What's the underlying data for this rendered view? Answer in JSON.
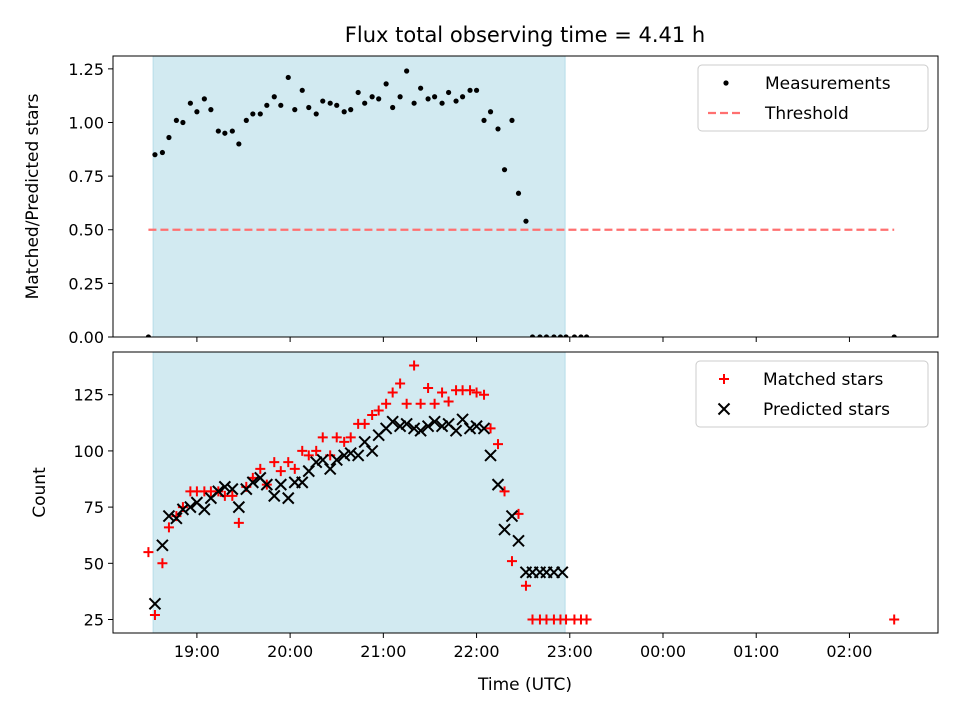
{
  "title": "Flux total observing time = 4.41 h",
  "xlabel": "Time (UTC)",
  "xticks": [
    "19:00",
    "20:00",
    "21:00",
    "22:00",
    "23:00",
    "00:00",
    "01:00",
    "02:00"
  ],
  "shade": {
    "start": 18.53,
    "end": 22.95,
    "color": "#add8e6"
  },
  "chart_data": [
    {
      "type": "scatter",
      "ylabel": "Matched/Predicted stars",
      "xlim": [
        18.1,
        26.95
      ],
      "ylim": [
        0,
        1.31
      ],
      "yticks": [
        "0.00",
        "0.25",
        "0.50",
        "0.75",
        "1.00",
        "1.25"
      ],
      "legend_position": "top-right",
      "series": [
        {
          "name": "Measurements",
          "color": "#000000",
          "marker": "dot",
          "x": [
            18.48,
            18.55,
            18.63,
            18.7,
            18.78,
            18.85,
            18.93,
            19.0,
            19.08,
            19.15,
            19.23,
            19.3,
            19.38,
            19.45,
            19.53,
            19.6,
            19.68,
            19.75,
            19.83,
            19.9,
            19.98,
            20.05,
            20.13,
            20.2,
            20.28,
            20.35,
            20.43,
            20.5,
            20.58,
            20.65,
            20.73,
            20.8,
            20.88,
            20.95,
            21.03,
            21.1,
            21.18,
            21.25,
            21.33,
            21.4,
            21.48,
            21.55,
            21.63,
            21.7,
            21.78,
            21.85,
            21.93,
            22.0,
            22.08,
            22.15,
            22.23,
            22.3,
            22.38,
            22.45,
            22.53,
            22.6,
            22.68,
            22.75,
            22.83,
            22.9,
            22.96,
            23.05,
            23.12,
            23.18,
            26.48
          ],
          "y": [
            0.0,
            0.85,
            0.86,
            0.93,
            1.01,
            1.0,
            1.09,
            1.05,
            1.11,
            1.06,
            0.96,
            0.95,
            0.96,
            0.9,
            1.01,
            1.04,
            1.04,
            1.08,
            1.12,
            1.08,
            1.21,
            1.06,
            1.15,
            1.07,
            1.04,
            1.1,
            1.09,
            1.08,
            1.05,
            1.06,
            1.14,
            1.09,
            1.12,
            1.11,
            1.18,
            1.07,
            1.12,
            1.24,
            1.09,
            1.16,
            1.11,
            1.12,
            1.09,
            1.14,
            1.1,
            1.12,
            1.15,
            1.15,
            1.01,
            1.05,
            0.97,
            0.78,
            1.01,
            0.67,
            0.54,
            0.0,
            0.0,
            0.0,
            0.0,
            0.0,
            0.0,
            0.0,
            0.0,
            0.0,
            0.0
          ]
        },
        {
          "name": "Threshold",
          "color": "#ff7070",
          "marker": "dashed-line",
          "x": [
            18.48,
            26.48
          ],
          "y": [
            0.5,
            0.5
          ]
        }
      ]
    },
    {
      "type": "scatter",
      "ylabel": "Count",
      "xlim": [
        18.1,
        26.95
      ],
      "ylim": [
        19,
        144
      ],
      "yticks": [
        "25",
        "50",
        "75",
        "100",
        "125"
      ],
      "legend_position": "top-right",
      "series": [
        {
          "name": "Matched stars",
          "color": "#ff0000",
          "marker": "plus",
          "x": [
            18.48,
            18.55,
            18.63,
            18.7,
            18.78,
            18.85,
            18.93,
            19.0,
            19.08,
            19.15,
            19.23,
            19.3,
            19.38,
            19.45,
            19.53,
            19.6,
            19.68,
            19.75,
            19.83,
            19.9,
            19.98,
            20.05,
            20.13,
            20.2,
            20.28,
            20.35,
            20.43,
            20.5,
            20.58,
            20.65,
            20.73,
            20.8,
            20.88,
            20.95,
            21.03,
            21.1,
            21.18,
            21.25,
            21.33,
            21.4,
            21.48,
            21.55,
            21.63,
            21.7,
            21.78,
            21.85,
            21.93,
            22.0,
            22.08,
            22.15,
            22.23,
            22.3,
            22.38,
            22.45,
            22.53,
            22.6,
            22.68,
            22.75,
            22.83,
            22.9,
            22.96,
            23.05,
            23.12,
            23.18,
            26.48
          ],
          "y": [
            55,
            27,
            50,
            66,
            71,
            75,
            82,
            82,
            82,
            82,
            82,
            80,
            80,
            68,
            84,
            88,
            92,
            85,
            95,
            91,
            95,
            92,
            100,
            98,
            100,
            106,
            98,
            106,
            104,
            106,
            112,
            112,
            116,
            118,
            121,
            126,
            130,
            121,
            138,
            121,
            128,
            121,
            126,
            122,
            127,
            127,
            127,
            126,
            125,
            110,
            103,
            82,
            51,
            72,
            40,
            25,
            25,
            25,
            25,
            25,
            25,
            25,
            25,
            25,
            25
          ]
        },
        {
          "name": "Predicted stars",
          "color": "#000000",
          "marker": "x",
          "x": [
            18.55,
            18.63,
            18.7,
            18.78,
            18.85,
            18.93,
            19.0,
            19.08,
            19.15,
            19.23,
            19.3,
            19.38,
            19.45,
            19.53,
            19.6,
            19.68,
            19.75,
            19.83,
            19.9,
            19.98,
            20.05,
            20.13,
            20.2,
            20.28,
            20.35,
            20.43,
            20.5,
            20.58,
            20.65,
            20.73,
            20.8,
            20.88,
            20.95,
            21.03,
            21.1,
            21.18,
            21.25,
            21.33,
            21.4,
            21.48,
            21.55,
            21.63,
            21.7,
            21.78,
            21.85,
            21.93,
            22.0,
            22.08,
            22.15,
            22.23,
            22.3,
            22.38,
            22.45,
            22.53,
            22.6,
            22.68,
            22.75,
            22.83,
            22.92
          ],
          "y": [
            32,
            58,
            71,
            70,
            74,
            75,
            77,
            74,
            79,
            82,
            84,
            83,
            75,
            83,
            86,
            88,
            85,
            80,
            85,
            79,
            86,
            86,
            91,
            95,
            96,
            92,
            96,
            98,
            99,
            98,
            104,
            100,
            107,
            110,
            113,
            111,
            112,
            110,
            109,
            111,
            113,
            111,
            112,
            109,
            114,
            110,
            111,
            110,
            98,
            85,
            65,
            71,
            60,
            46,
            46,
            46,
            46,
            46,
            46
          ]
        }
      ]
    }
  ]
}
